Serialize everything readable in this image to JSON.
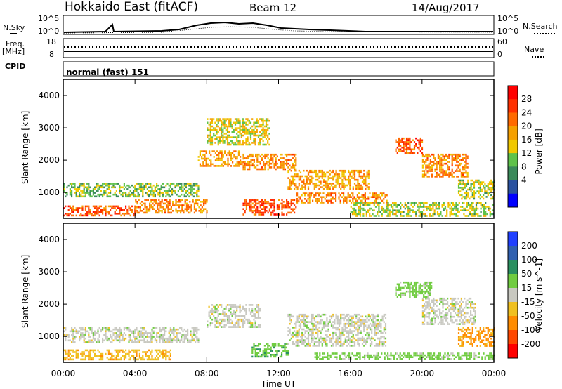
{
  "header": {
    "radar": "Hokkaido East (fitACF)",
    "beam": "Beam 12",
    "date": "14/Aug/2017"
  },
  "noise_panel": {
    "left_label": "N.Sky",
    "right_label": "N.Search",
    "left_ticks": [
      "10^5",
      "10^0"
    ],
    "right_ticks": [
      "10^5",
      "10^0"
    ]
  },
  "freq_panel": {
    "left_label": "Freq.",
    "left_unit": "[MHz]",
    "left_ticks": [
      "18",
      "8"
    ],
    "right_label": "Nave",
    "right_ticks": [
      "60",
      "0"
    ]
  },
  "cpid_panel": {
    "label": "CPID",
    "value": "normal (fast) 151"
  },
  "colors": {
    "power": [
      "#0000ff",
      "#2a52a0",
      "#3a8a5a",
      "#5ec24a",
      "#f0c800",
      "#f5a000",
      "#ff6a00",
      "#ff3000",
      "#ff0000"
    ],
    "velocity": [
      "#2040ff",
      "#3060b0",
      "#2a9060",
      "#70cc40",
      "#c8c8c0",
      "#f0c020",
      "#ff8c00",
      "#ff4800",
      "#ff0000"
    ]
  },
  "chart_data": [
    {
      "type": "heatmap",
      "title": "",
      "ylabel": "Slant Range [km]",
      "yticks": [
        "1000",
        "2000",
        "3000",
        "4000"
      ],
      "ylim": [
        200,
        4500
      ],
      "xticks": [
        "00:00",
        "04:00",
        "08:00",
        "12:00",
        "16:00",
        "20:00",
        "00:00"
      ],
      "xlim": [
        "00:00",
        "24:00"
      ],
      "colorbar": {
        "label": "Power [dB]",
        "ticks": [
          "28",
          "24",
          "20",
          "16",
          "12",
          "8",
          "4"
        ]
      },
      "regions": [
        {
          "t0": 0.0,
          "t1": 4.0,
          "r0": 300,
          "r1": 600,
          "power": 28
        },
        {
          "t0": 0.0,
          "t1": 7.5,
          "r0": 900,
          "r1": 1300,
          "power": 14
        },
        {
          "t0": 4.0,
          "t1": 8.0,
          "r0": 400,
          "r1": 800,
          "power": 24
        },
        {
          "t0": 7.5,
          "t1": 10.0,
          "r0": 1800,
          "r1": 2300,
          "power": 22
        },
        {
          "t0": 8.0,
          "t1": 11.5,
          "r0": 2500,
          "r1": 3300,
          "power": 18
        },
        {
          "t0": 10.0,
          "t1": 13.0,
          "r0": 300,
          "r1": 800,
          "power": 28
        },
        {
          "t0": 10.0,
          "t1": 13.0,
          "r0": 1700,
          "r1": 2200,
          "power": 24
        },
        {
          "t0": 12.5,
          "t1": 17.0,
          "r0": 1100,
          "r1": 1700,
          "power": 22
        },
        {
          "t0": 13.0,
          "t1": 18.0,
          "r0": 700,
          "r1": 1000,
          "power": 24
        },
        {
          "t0": 16.0,
          "t1": 24.0,
          "r0": 300,
          "r1": 700,
          "power": 16
        },
        {
          "t0": 18.5,
          "t1": 20.0,
          "r0": 2200,
          "r1": 2700,
          "power": 28
        },
        {
          "t0": 20.0,
          "t1": 22.5,
          "r0": 1500,
          "r1": 2200,
          "power": 24
        },
        {
          "t0": 22.0,
          "t1": 24.0,
          "r0": 800,
          "r1": 1400,
          "power": 16
        }
      ]
    },
    {
      "type": "heatmap",
      "title": "",
      "ylabel": "Slant Range [km]",
      "yticks": [
        "1000",
        "2000",
        "3000",
        "4000"
      ],
      "ylim": [
        200,
        4500
      ],
      "xticks": [
        "00:00",
        "04:00",
        "08:00",
        "12:00",
        "16:00",
        "20:00",
        "00:00"
      ],
      "xlim": [
        "00:00",
        "24:00"
      ],
      "xlabel": "Time UT",
      "colorbar": {
        "label": "Velocity [m s^-1]",
        "ticks": [
          "200",
          "100",
          "50",
          "15",
          "-15",
          "-50",
          "-100",
          "-200"
        ]
      },
      "regions": [
        {
          "t0": 0.0,
          "t1": 7.5,
          "r0": 800,
          "r1": 1300,
          "velocity": 0
        },
        {
          "t0": 0.0,
          "t1": 6.0,
          "r0": 300,
          "r1": 600,
          "velocity": -40
        },
        {
          "t0": 8.0,
          "t1": 11.0,
          "r0": 1300,
          "r1": 2000,
          "velocity": 0
        },
        {
          "t0": 10.5,
          "t1": 12.5,
          "r0": 400,
          "r1": 800,
          "velocity": 40
        },
        {
          "t0": 12.5,
          "t1": 18.0,
          "r0": 700,
          "r1": 1700,
          "velocity": 0
        },
        {
          "t0": 14.0,
          "t1": 24.0,
          "r0": 300,
          "r1": 500,
          "velocity": 30
        },
        {
          "t0": 18.5,
          "t1": 20.5,
          "r0": 2200,
          "r1": 2700,
          "velocity": 30
        },
        {
          "t0": 20.0,
          "t1": 23.0,
          "r0": 1400,
          "r1": 2200,
          "velocity": 0
        },
        {
          "t0": 22.0,
          "t1": 24.0,
          "r0": 700,
          "r1": 1300,
          "velocity": -60
        }
      ]
    }
  ]
}
